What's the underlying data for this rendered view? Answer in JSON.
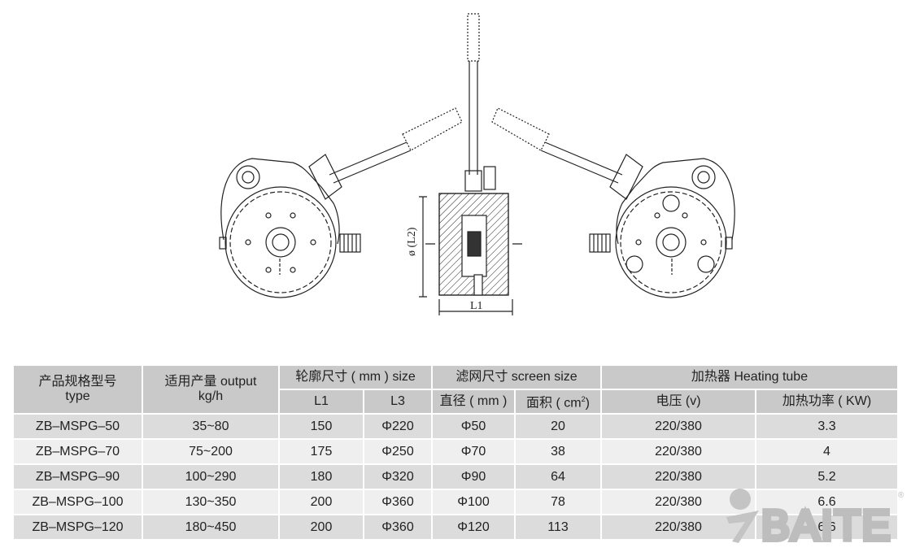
{
  "drawing": {
    "dimension_height": "ø (L2)",
    "dimension_width": "L1"
  },
  "table": {
    "header": {
      "type_cn": "产品规格型号",
      "type_en": "type",
      "output_cn": "适用产量 output",
      "output_unit": "kg/h",
      "size": "轮廓尺寸 ( mm ) size",
      "l1": "L1",
      "l3": "L3",
      "screen": "滤网尺寸 screen size",
      "diameter": "直径 ( mm )",
      "area": "面积 ( cm",
      "area_sup": "2",
      "area_end": ")",
      "heater": "加热器 Heating tube",
      "voltage": "电压 (v)",
      "power": "加热功率 ( KW)"
    },
    "rows": [
      [
        "ZB–MSPG–50",
        "35~80",
        "150",
        "Φ220",
        "Φ50",
        "20",
        "220/380",
        "3.3"
      ],
      [
        "ZB–MSPG–70",
        "75~200",
        "175",
        "Φ250",
        "Φ70",
        "38",
        "220/380",
        "4"
      ],
      [
        "ZB–MSPG–90",
        "100~290",
        "180",
        "Φ320",
        "Φ90",
        "64",
        "220/380",
        "5.2"
      ],
      [
        "ZB–MSPG–100",
        "130~350",
        "200",
        "Φ360",
        "Φ100",
        "78",
        "220/380",
        "6.6"
      ],
      [
        "ZB–MSPG–120",
        "180~450",
        "200",
        "Φ360",
        "Φ120",
        "113",
        "220/380",
        "6.6"
      ]
    ]
  },
  "watermark": {
    "brand": "BAITE",
    "mark": "®",
    "color": "#b5b5b5"
  }
}
